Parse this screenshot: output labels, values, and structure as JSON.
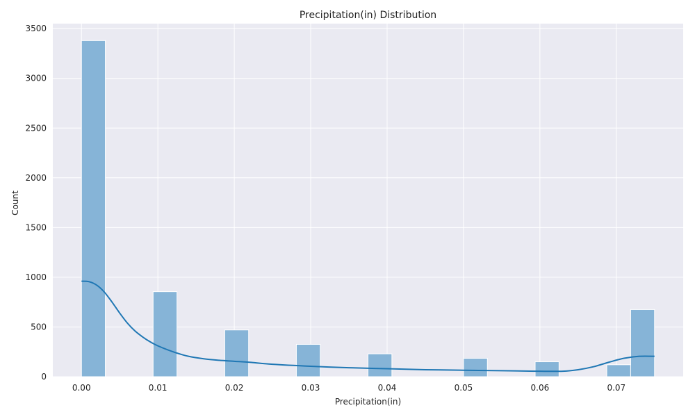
{
  "chart_data": {
    "type": "histogram",
    "title": "Precipitation(in) Distribution",
    "xlabel": "Precipitation(in)",
    "ylabel": "Count",
    "xlim": [
      -0.00375,
      0.07875
    ],
    "ylim": [
      0,
      3550
    ],
    "x_ticks": [
      0.0,
      0.01,
      0.02,
      0.03,
      0.04,
      0.05,
      0.06,
      0.07
    ],
    "x_tick_labels": [
      "0.00",
      "0.01",
      "0.02",
      "0.03",
      "0.04",
      "0.05",
      "0.06",
      "0.07"
    ],
    "y_ticks": [
      0,
      500,
      1000,
      1500,
      2000,
      2500,
      3000,
      3500
    ],
    "y_tick_labels": [
      "0",
      "500",
      "1000",
      "1500",
      "2000",
      "2500",
      "3000",
      "3500"
    ],
    "grid": true,
    "bars": [
      {
        "x0": 0.0,
        "x1": 0.003125,
        "count": 3380
      },
      {
        "x0": 0.009375,
        "x1": 0.0125,
        "count": 855
      },
      {
        "x0": 0.01875,
        "x1": 0.021875,
        "count": 470
      },
      {
        "x0": 0.028125,
        "x1": 0.03125,
        "count": 325
      },
      {
        "x0": 0.0375,
        "x1": 0.040625,
        "count": 230
      },
      {
        "x0": 0.05,
        "x1": 0.053125,
        "count": 185
      },
      {
        "x0": 0.059375,
        "x1": 0.0625,
        "count": 150
      },
      {
        "x0": 0.06875,
        "x1": 0.071875,
        "count": 120
      },
      {
        "x0": 0.071875,
        "x1": 0.075,
        "count": 675
      }
    ],
    "kde": {
      "x": [
        0.0,
        0.001,
        0.002,
        0.003,
        0.004,
        0.005,
        0.006,
        0.007,
        0.008,
        0.009,
        0.01,
        0.012,
        0.014,
        0.016,
        0.018,
        0.02,
        0.022,
        0.025,
        0.03,
        0.035,
        0.04,
        0.045,
        0.05,
        0.055,
        0.06,
        0.063,
        0.065,
        0.067,
        0.069,
        0.071,
        0.073,
        0.075
      ],
      "y": [
        960,
        955,
        920,
        850,
        750,
        640,
        540,
        460,
        400,
        350,
        310,
        250,
        205,
        180,
        165,
        155,
        145,
        125,
        105,
        90,
        80,
        70,
        65,
        60,
        55,
        55,
        70,
        100,
        145,
        185,
        205,
        205
      ]
    },
    "colors": {
      "bar_fill": "#86b4d7",
      "bar_stroke": "#ffffff",
      "kde_line": "#1f77b4",
      "plot_background": "#eaeaf2",
      "grid": "#ffffff"
    }
  }
}
